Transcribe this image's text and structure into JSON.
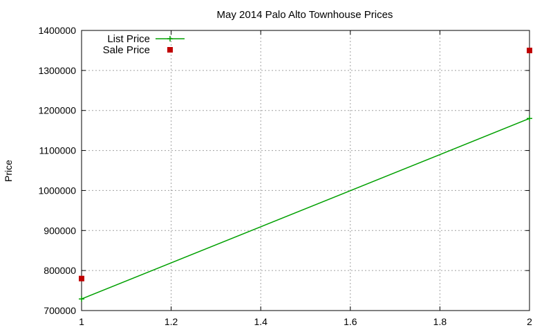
{
  "chart_data": {
    "type": "line",
    "title": "May 2014 Palo Alto Townhouse Prices",
    "xlabel": "",
    "ylabel": "Price",
    "xlim": [
      1,
      2
    ],
    "ylim": [
      700000,
      1400000
    ],
    "x_ticks": [
      "1",
      "1.2",
      "1.4",
      "1.6",
      "1.8",
      "2"
    ],
    "y_ticks": [
      "700000",
      "800000",
      "900000",
      "1000000",
      "1100000",
      "1200000",
      "1300000",
      "1400000"
    ],
    "grid": true,
    "legend_position": "top-left",
    "series": [
      {
        "name": "List Price",
        "style": "linespoints",
        "color": "#00a000",
        "points": [
          {
            "x": 1,
            "y": 729000
          },
          {
            "x": 2,
            "y": 1180000
          }
        ]
      },
      {
        "name": "Sale Price",
        "style": "points",
        "color": "#c00000",
        "points": [
          {
            "x": 1,
            "y": 780000
          },
          {
            "x": 2,
            "y": 1350000
          }
        ]
      }
    ]
  }
}
